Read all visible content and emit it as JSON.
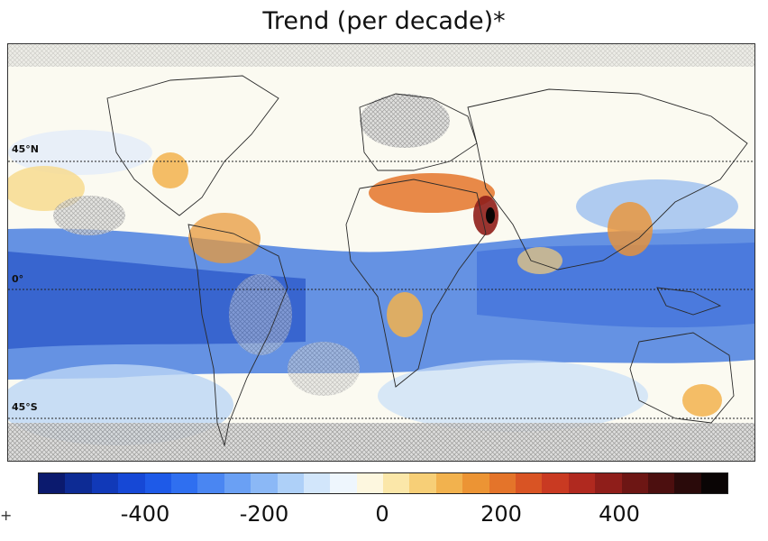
{
  "title": "Trend (per decade)*",
  "latitudes": [
    {
      "label": "45°N"
    },
    {
      "label": "0°"
    },
    {
      "label": "45°S"
    }
  ],
  "colorbar": {
    "ticks": [
      "-400",
      "-200",
      "0",
      "200",
      "400"
    ],
    "range": [
      -580,
      580
    ],
    "tick_values": [
      -400,
      -200,
      0,
      200,
      400
    ],
    "colors": [
      "#0b1a6e",
      "#0d2b94",
      "#1139b8",
      "#1648d6",
      "#1e5ae8",
      "#2f6ff0",
      "#4a86f2",
      "#6aa0f4",
      "#8bb8f6",
      "#aed0f8",
      "#d2e6fb",
      "#eef6fd",
      "#fdf7df",
      "#fbe7a9",
      "#f7cf77",
      "#f2b24e",
      "#ec9434",
      "#e4742a",
      "#d95424",
      "#c93a22",
      "#b0291f",
      "#8f1e1a",
      "#6d1614",
      "#4c0f0f",
      "#2a0a0a",
      "#0a0505"
    ]
  },
  "legend_left_glyph": "+"
}
